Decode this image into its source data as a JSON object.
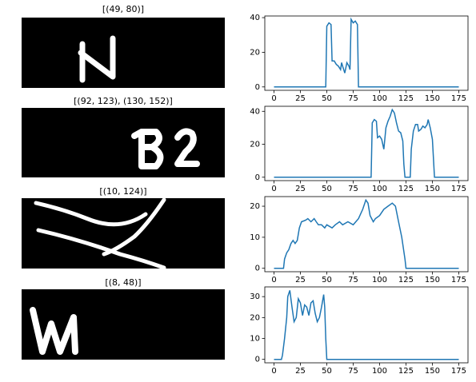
{
  "images": [
    {
      "title": "[(49, 80)]"
    },
    {
      "title": "[(92, 123), (130, 152)]"
    },
    {
      "title": "[(10, 124)]"
    },
    {
      "title": "[(8, 48)]"
    }
  ],
  "chart_data": [
    {
      "type": "line",
      "color": "#1f77b4",
      "xlim": [
        -8.75,
        183.75
      ],
      "ylim": [
        -1.95,
        40.95
      ],
      "xticks": [
        0,
        25,
        50,
        75,
        100,
        125,
        150,
        175
      ],
      "yticks": [
        0,
        20,
        40
      ],
      "x": [
        0,
        49,
        50,
        52,
        54,
        55,
        57,
        59,
        61,
        63,
        64,
        65,
        67,
        69,
        71,
        72,
        73,
        75,
        77,
        79,
        80,
        175
      ],
      "values": [
        0,
        0,
        35,
        37,
        36,
        15,
        15,
        13,
        12,
        10,
        14,
        12,
        8,
        14,
        12,
        10,
        39,
        37,
        38,
        36,
        0,
        0
      ]
    },
    {
      "type": "line",
      "color": "#1f77b4",
      "xlim": [
        -8.75,
        183.75
      ],
      "ylim": [
        -2.05,
        43.05
      ],
      "xticks": [
        0,
        25,
        50,
        75,
        100,
        125,
        150,
        175
      ],
      "yticks": [
        0,
        20,
        40
      ],
      "x": [
        0,
        92,
        93,
        95,
        97,
        98,
        100,
        102,
        104,
        106,
        108,
        110,
        112,
        114,
        116,
        118,
        120,
        122,
        123,
        124,
        129,
        130,
        132,
        134,
        136,
        137,
        139,
        141,
        143,
        145,
        146,
        148,
        150,
        152,
        175
      ],
      "values": [
        0,
        0,
        33,
        35,
        34,
        24,
        25,
        23,
        17,
        30,
        34,
        37,
        41,
        39,
        33,
        28,
        27,
        22,
        8,
        0,
        0,
        17,
        28,
        32,
        32,
        28,
        29,
        31,
        30,
        32,
        35,
        30,
        23,
        0,
        0
      ]
    },
    {
      "type": "line",
      "color": "#1f77b4",
      "xlim": [
        -8.75,
        183.75
      ],
      "ylim": [
        -1.1,
        23.1
      ],
      "xticks": [
        0,
        25,
        50,
        75,
        100,
        125,
        150,
        175
      ],
      "yticks": [
        0,
        10,
        20
      ],
      "x": [
        0,
        9,
        10,
        12,
        14,
        16,
        18,
        20,
        22,
        24,
        26,
        30,
        32,
        35,
        38,
        40,
        42,
        45,
        48,
        50,
        55,
        58,
        62,
        65,
        70,
        75,
        80,
        84,
        87,
        89,
        91,
        94,
        96,
        100,
        104,
        108,
        112,
        115,
        118,
        121,
        124,
        125,
        175
      ],
      "values": [
        0,
        0,
        3,
        5,
        6,
        8,
        9,
        8,
        9,
        13,
        15,
        15.5,
        16,
        15,
        16,
        15,
        14,
        14,
        13,
        14,
        13,
        14,
        15,
        14,
        15,
        14,
        16,
        19,
        22,
        21,
        17,
        15,
        16,
        17,
        19,
        20,
        21,
        20,
        15,
        10,
        3,
        0,
        0
      ]
    },
    {
      "type": "line",
      "color": "#1f77b4",
      "xlim": [
        -8.75,
        183.75
      ],
      "ylim": [
        -1.65,
        34.65
      ],
      "xticks": [
        0,
        25,
        50,
        75,
        100,
        125,
        150,
        175
      ],
      "yticks": [
        0,
        10,
        20,
        30
      ],
      "x": [
        0,
        7,
        8,
        10,
        12,
        13,
        15,
        17,
        19,
        21,
        23,
        25,
        27,
        29,
        31,
        33,
        35,
        37,
        39,
        41,
        43,
        45,
        47,
        48,
        49,
        50,
        175
      ],
      "values": [
        0,
        0,
        2,
        10,
        20,
        30,
        33,
        25,
        18,
        20,
        29,
        27,
        21,
        26,
        25,
        21,
        27,
        28,
        22,
        18,
        20,
        25,
        31,
        25,
        10,
        0,
        0
      ]
    }
  ]
}
